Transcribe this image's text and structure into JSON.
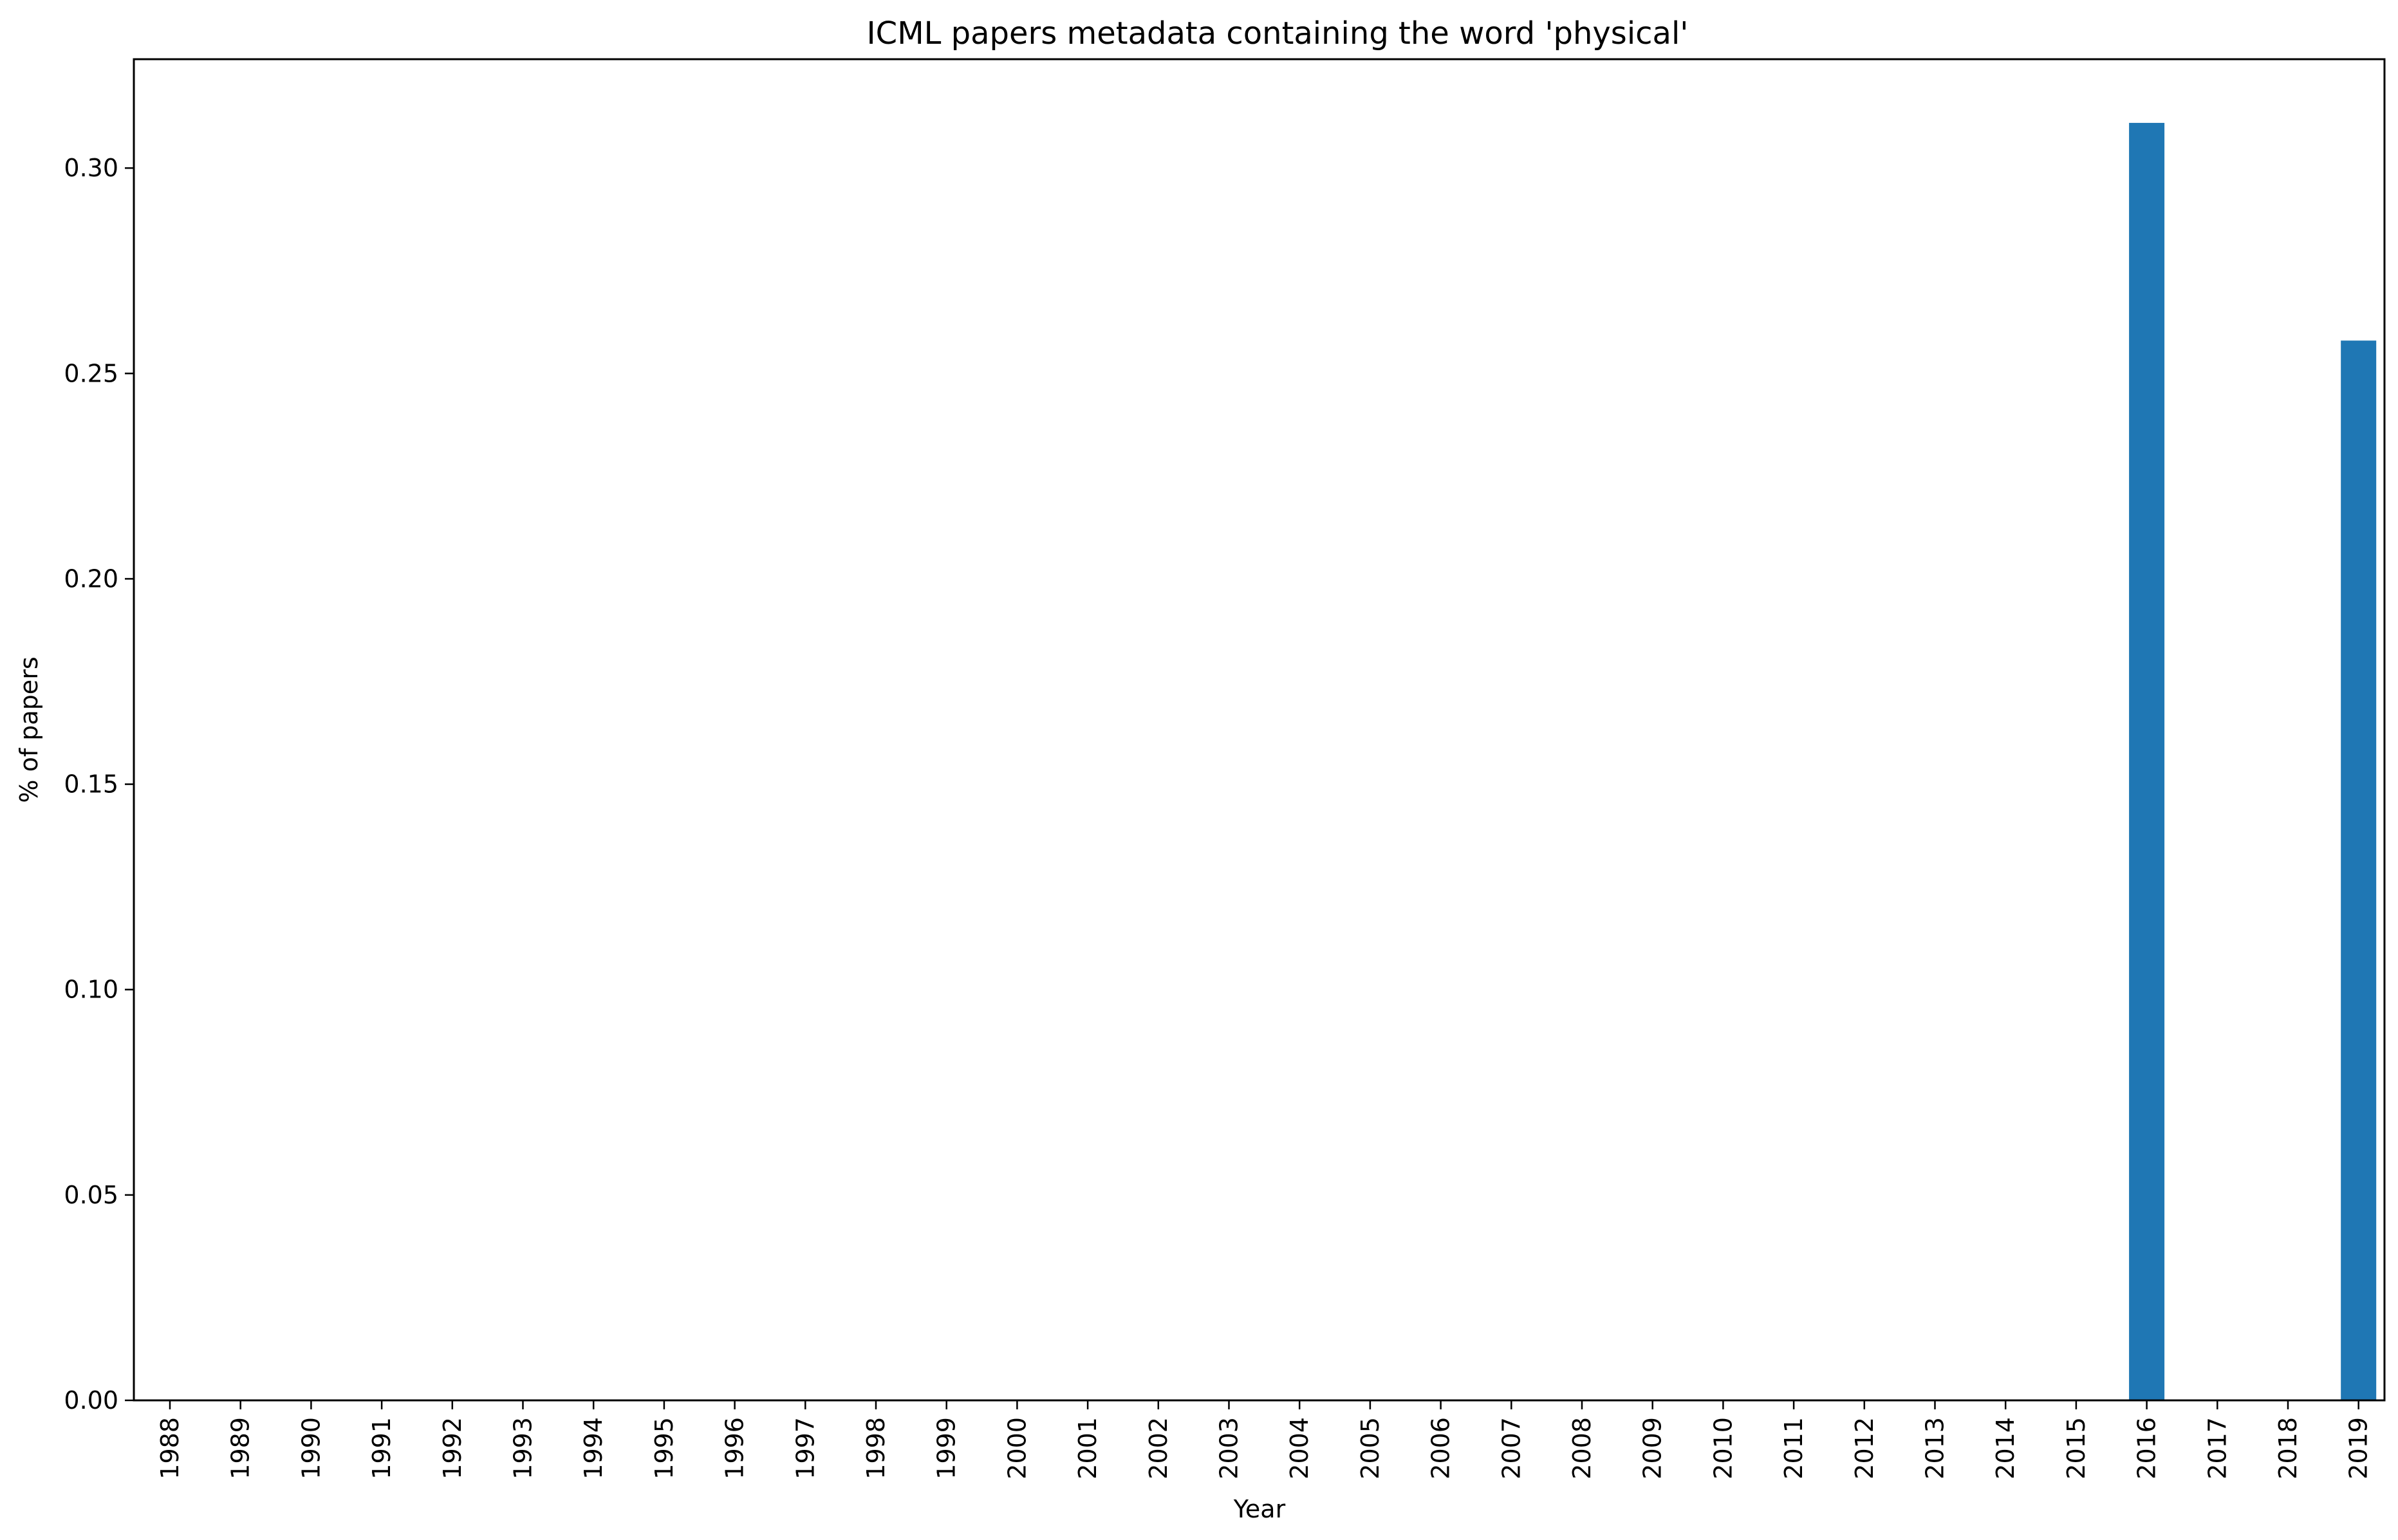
{
  "chart_data": {
    "type": "bar",
    "title": "ICML papers metadata containing the word 'physical'",
    "xlabel": "Year",
    "ylabel": "% of papers",
    "categories": [
      "1988",
      "1989",
      "1990",
      "1991",
      "1992",
      "1993",
      "1994",
      "1995",
      "1996",
      "1997",
      "1998",
      "1999",
      "2000",
      "2001",
      "2002",
      "2003",
      "2004",
      "2005",
      "2006",
      "2007",
      "2008",
      "2009",
      "2010",
      "2011",
      "2012",
      "2013",
      "2014",
      "2015",
      "2016",
      "2017",
      "2018",
      "2019"
    ],
    "values": [
      0,
      0,
      0,
      0,
      0,
      0,
      0,
      0,
      0,
      0,
      0,
      0,
      0,
      0,
      0,
      0,
      0,
      0,
      0,
      0,
      0,
      0,
      0,
      0,
      0,
      0,
      0,
      0,
      0.311,
      0,
      0,
      0.258
    ],
    "ylim": [
      0,
      0.3265
    ],
    "yticks": [
      "0.00",
      "0.05",
      "0.10",
      "0.15",
      "0.20",
      "0.25",
      "0.30"
    ],
    "grid": false,
    "legend": "none",
    "bar_color": "#1f77b4"
  }
}
